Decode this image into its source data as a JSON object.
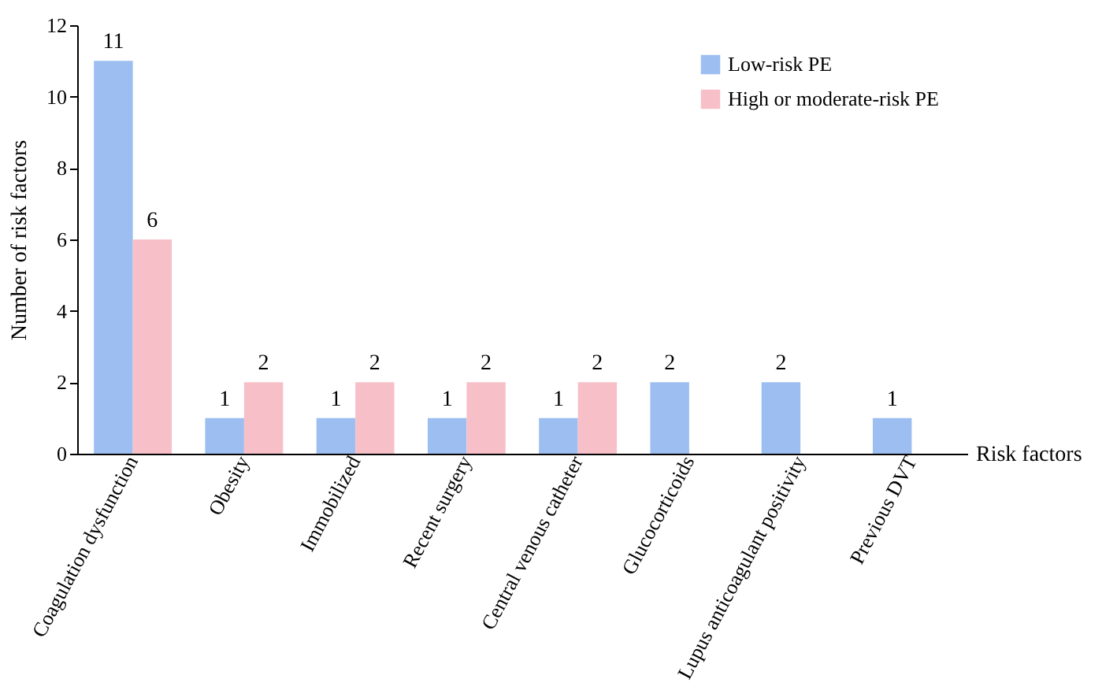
{
  "chart_data": {
    "type": "bar",
    "xlabel": "Risk factors",
    "ylabel": "Number of risk factors",
    "categories": [
      "Coagulation dysfunction",
      "Obesity",
      "Immobilized",
      "Recent surgery",
      "Central venous catheter",
      "Glucocorticoids",
      "Lupus anticoagulant positivity",
      "Previous DVT"
    ],
    "series": [
      {
        "name": "Low-risk PE",
        "color": "#9dbef0",
        "values": [
          11,
          1,
          1,
          1,
          1,
          2,
          2,
          1
        ]
      },
      {
        "name": "High or moderate-risk PE",
        "color": "#f7c0c9",
        "values": [
          6,
          2,
          2,
          2,
          2,
          null,
          null,
          null
        ]
      }
    ],
    "ylim": [
      0,
      12
    ],
    "yticks": [
      0,
      2,
      4,
      6,
      8,
      10,
      12
    ],
    "data_labels": true,
    "legend": "top right",
    "grid": false
  }
}
